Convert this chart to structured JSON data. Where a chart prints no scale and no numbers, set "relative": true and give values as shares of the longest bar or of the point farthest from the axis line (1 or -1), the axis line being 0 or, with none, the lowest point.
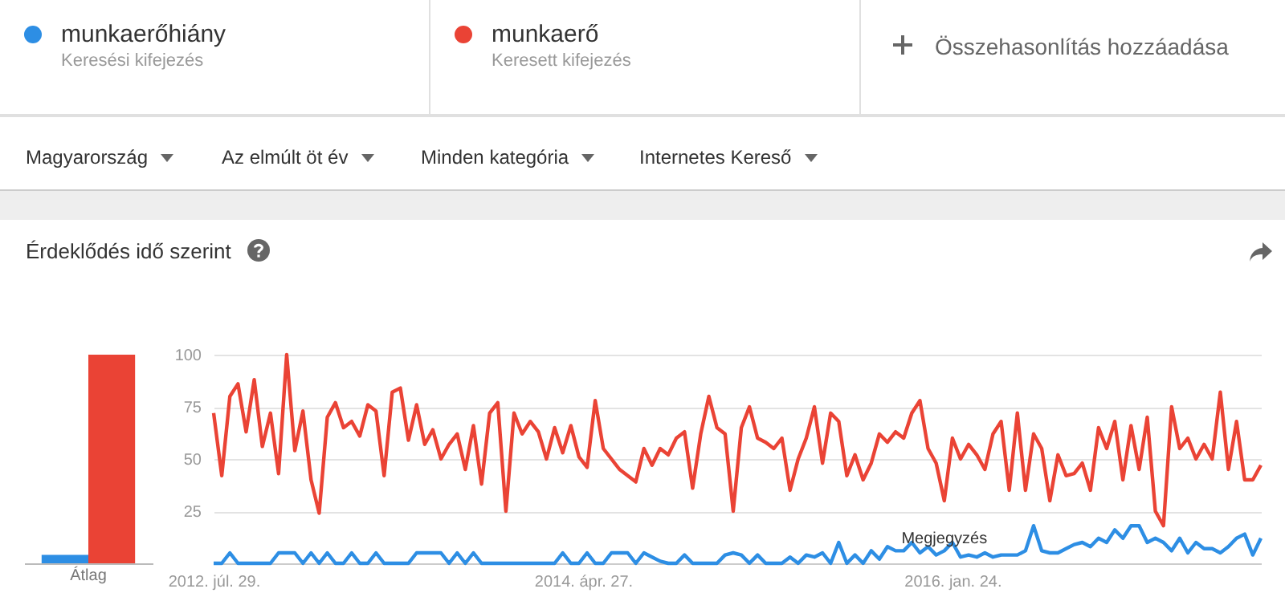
{
  "chart_data": [
    {
      "type": "bar",
      "title": "Érdeklődés idő szerint",
      "relative": true,
      "categories": [
        "Átlag"
      ],
      "series": [
        {
          "color": "#2d8ee4",
          "values": [
            0.04
          ]
        },
        {
          "color": "#ea4335",
          "values": [
            1
          ]
        }
      ]
    },
    {
      "type": "line",
      "legend": "top left",
      "grid": "y",
      "line_style": "solid",
      "marker": "none",
      "annotations": [
        "Keresési kifejezés",
        "Keresett kifejezés",
        "Összehasonlítás hozzáadása",
        "Magyarország",
        "Az elmúlt öt év",
        "Minden kategória",
        "Internetes Kereső",
        {
          "text": "Megjegyzés",
          "x": "2016-01-10",
          "y": 5
        }
      ],
      "xlim": [
        "2012-07-29",
        "2017-07-09"
      ],
      "xticks": [
        {
          "value": "2012-07-29",
          "label": "2012. júl. 29."
        },
        {
          "value": "2014-04-27",
          "label": "2014. ápr. 27."
        },
        {
          "value": "2016-01-24",
          "label": "2016. jan. 24."
        }
      ],
      "ylim": [
        0,
        100
      ],
      "yticks": [
        25,
        50,
        75,
        100
      ],
      "x": [
        "2012-07-29",
        "2012-08-12",
        "2012-08-26",
        "2012-09-09",
        "2012-09-23",
        "2012-10-07",
        "2012-10-21",
        "2012-11-04",
        "2012-11-18",
        "2012-12-02",
        "2012-12-16",
        "2012-12-30",
        "2013-01-13",
        "2013-01-27",
        "2013-02-10",
        "2013-02-24",
        "2013-03-10",
        "2013-03-24",
        "2013-04-07",
        "2013-04-21",
        "2013-05-05",
        "2013-05-19",
        "2013-06-02",
        "2013-06-16",
        "2013-06-30",
        "2013-07-14",
        "2013-07-28",
        "2013-08-11",
        "2013-08-25",
        "2013-09-08",
        "2013-09-22",
        "2013-10-06",
        "2013-10-20",
        "2013-11-03",
        "2013-11-17",
        "2013-12-01",
        "2013-12-15",
        "2013-12-29",
        "2014-01-12",
        "2014-01-26",
        "2014-02-09",
        "2014-02-23",
        "2014-03-09",
        "2014-03-23",
        "2014-04-06",
        "2014-04-20",
        "2014-05-04",
        "2014-05-18",
        "2014-06-01",
        "2014-06-15",
        "2014-06-29",
        "2014-07-13",
        "2014-07-27",
        "2014-08-10",
        "2014-08-24",
        "2014-09-07",
        "2014-09-21",
        "2014-10-05",
        "2014-10-19",
        "2014-11-02",
        "2014-11-16",
        "2014-11-30",
        "2014-12-14",
        "2014-12-28",
        "2015-01-11",
        "2015-01-25",
        "2015-02-08",
        "2015-02-22",
        "2015-03-08",
        "2015-03-22",
        "2015-04-05",
        "2015-04-19",
        "2015-05-03",
        "2015-05-17",
        "2015-05-31",
        "2015-06-14",
        "2015-06-28",
        "2015-07-12",
        "2015-07-26",
        "2015-08-09",
        "2015-08-23",
        "2015-09-06",
        "2015-09-20",
        "2015-10-04",
        "2015-10-18",
        "2015-11-01",
        "2015-11-15",
        "2015-11-29",
        "2015-12-13",
        "2015-12-27",
        "2016-01-10",
        "2016-01-24",
        "2016-02-07",
        "2016-02-21",
        "2016-03-06",
        "2016-03-20",
        "2016-04-03",
        "2016-04-17",
        "2016-05-01",
        "2016-05-15",
        "2016-05-29",
        "2016-06-12",
        "2016-06-26",
        "2016-07-10",
        "2016-07-24",
        "2016-08-07",
        "2016-08-21",
        "2016-09-04",
        "2016-09-18",
        "2016-10-02",
        "2016-10-16",
        "2016-10-30",
        "2016-11-13",
        "2016-11-27",
        "2016-12-11",
        "2016-12-25",
        "2017-01-08",
        "2017-01-22",
        "2017-02-05",
        "2017-02-19",
        "2017-03-05",
        "2017-03-19",
        "2017-04-02",
        "2017-04-16",
        "2017-04-30",
        "2017-05-14",
        "2017-05-28",
        "2017-06-11",
        "2017-06-25",
        "2017-07-09"
      ],
      "series": [
        {
          "name": "munkaerőhiány",
          "color": "#2d8ee4",
          "values": [
            0,
            0,
            5,
            0,
            0,
            0,
            0,
            0,
            5,
            5,
            5,
            0,
            5,
            0,
            5,
            0,
            0,
            5,
            0,
            0,
            5,
            0,
            0,
            0,
            0,
            5,
            5,
            5,
            5,
            0,
            5,
            0,
            5,
            0,
            0,
            0,
            0,
            0,
            0,
            0,
            0,
            0,
            0,
            5,
            0,
            0,
            5,
            0,
            0,
            5,
            5,
            5,
            0,
            5,
            3,
            1,
            0,
            0,
            4,
            0,
            0,
            0,
            0,
            4,
            5,
            4,
            0,
            4,
            0,
            0,
            0,
            3,
            0,
            4,
            3,
            5,
            0,
            10,
            0,
            4,
            0,
            6,
            2,
            8,
            6,
            6,
            10,
            5,
            8,
            4,
            6,
            10,
            3,
            4,
            3,
            5,
            3,
            4,
            4,
            4,
            6,
            18,
            6,
            5,
            5,
            7,
            9,
            10,
            8,
            12,
            10,
            16,
            12,
            18,
            18,
            10,
            12,
            10,
            6,
            12,
            5,
            10,
            7,
            7,
            5,
            8,
            12,
            14,
            4,
            12
          ]
        },
        {
          "name": "munkaerő",
          "color": "#ea4335",
          "values": [
            72,
            42,
            80,
            86,
            63,
            88,
            56,
            72,
            43,
            100,
            54,
            73,
            40,
            24,
            70,
            77,
            65,
            68,
            61,
            76,
            73,
            42,
            82,
            84,
            59,
            76,
            57,
            64,
            50,
            57,
            62,
            45,
            66,
            38,
            72,
            77,
            25,
            72,
            62,
            68,
            63,
            50,
            65,
            53,
            66,
            51,
            46,
            78,
            55,
            50,
            45,
            42,
            39,
            55,
            47,
            55,
            52,
            60,
            63,
            36,
            62,
            80,
            65,
            62,
            25,
            65,
            75,
            60,
            58,
            55,
            60,
            35,
            50,
            60,
            75,
            48,
            72,
            68,
            42,
            52,
            40,
            48,
            62,
            58,
            63,
            60,
            72,
            78,
            55,
            48,
            30,
            60,
            50,
            57,
            52,
            45,
            62,
            68,
            35,
            72,
            35,
            62,
            55,
            30,
            52,
            42,
            43,
            48,
            35,
            65,
            55,
            68,
            40,
            66,
            45,
            70,
            25,
            18,
            75,
            55,
            60,
            50,
            57,
            50,
            82,
            45,
            68,
            40,
            40,
            47
          ]
        }
      ]
    }
  ]
}
